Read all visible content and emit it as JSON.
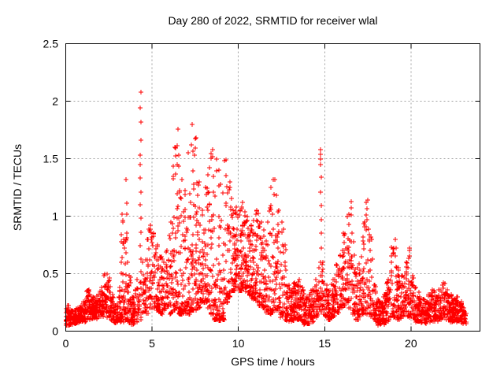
{
  "chart_data": {
    "type": "scatter",
    "title": "Day 280 of 2022, SRMTID for receiver wlal",
    "xlabel": "GPS time / hours",
    "ylabel": "SRMTID / TECUs",
    "marker": "plus",
    "marker_color": "#ff0000",
    "grid": true,
    "grid_color": "#a0a0a0",
    "border_color": "#000000",
    "xlim": [
      0,
      24
    ],
    "ylim": [
      0,
      2.5
    ],
    "x_ticks": [
      0,
      5,
      10,
      15,
      20
    ],
    "y_ticks": [
      0,
      0.5,
      1,
      1.5,
      2,
      2.5
    ],
    "x_data_extent": [
      0.0,
      23.2
    ],
    "bin_width_hours": 0.2,
    "envelope_bins": [
      [
        0.1,
        0.05,
        0.22,
        30
      ],
      [
        0.3,
        0.05,
        0.18,
        30
      ],
      [
        0.5,
        0.06,
        0.18,
        30
      ],
      [
        0.7,
        0.07,
        0.2,
        30
      ],
      [
        0.9,
        0.08,
        0.22,
        30
      ],
      [
        1.1,
        0.08,
        0.26,
        30
      ],
      [
        1.3,
        0.1,
        0.36,
        32
      ],
      [
        1.5,
        0.1,
        0.3,
        30
      ],
      [
        1.7,
        0.1,
        0.27,
        30
      ],
      [
        1.9,
        0.12,
        0.32,
        30
      ],
      [
        2.1,
        0.12,
        0.38,
        30
      ],
      [
        2.3,
        0.15,
        0.5,
        28
      ],
      [
        2.5,
        0.12,
        0.46,
        26
      ],
      [
        2.7,
        0.08,
        0.32,
        28
      ],
      [
        2.9,
        0.06,
        0.22,
        28
      ],
      [
        3.1,
        0.07,
        0.38,
        28
      ],
      [
        3.3,
        0.08,
        1.02,
        34
      ],
      [
        3.5,
        0.1,
        1.32,
        36
      ],
      [
        3.7,
        0.07,
        0.48,
        30
      ],
      [
        3.9,
        0.05,
        0.3,
        30
      ],
      [
        4.1,
        0.08,
        0.45,
        20
      ],
      [
        4.3,
        0.1,
        0.42,
        16
      ],
      [
        4.5,
        0.12,
        0.6,
        18
      ],
      [
        4.7,
        0.15,
        0.8,
        22
      ],
      [
        4.9,
        0.2,
        0.92,
        24
      ],
      [
        5.1,
        0.2,
        0.85,
        26
      ],
      [
        5.3,
        0.18,
        0.75,
        26
      ],
      [
        5.5,
        0.15,
        0.65,
        26
      ],
      [
        5.7,
        0.18,
        0.6,
        24
      ],
      [
        5.9,
        0.2,
        0.7,
        24
      ],
      [
        6.1,
        0.15,
        0.95,
        26
      ],
      [
        6.3,
        0.18,
        1.6,
        34
      ],
      [
        6.5,
        0.15,
        1.76,
        36
      ],
      [
        6.7,
        0.15,
        1.32,
        30
      ],
      [
        6.9,
        0.15,
        1.22,
        28
      ],
      [
        7.1,
        0.15,
        1.55,
        32
      ],
      [
        7.3,
        0.18,
        1.8,
        38
      ],
      [
        7.5,
        0.18,
        1.68,
        34
      ],
      [
        7.7,
        0.2,
        1.3,
        30
      ],
      [
        7.9,
        0.25,
        1.05,
        28
      ],
      [
        8.1,
        0.25,
        1.25,
        26
      ],
      [
        8.3,
        0.2,
        1.42,
        28
      ],
      [
        8.5,
        0.15,
        1.58,
        30
      ],
      [
        8.7,
        0.1,
        1.5,
        30
      ],
      [
        8.9,
        0.09,
        1.4,
        32
      ],
      [
        9.1,
        0.1,
        1.2,
        28
      ],
      [
        9.3,
        0.25,
        1.49,
        30
      ],
      [
        9.5,
        0.3,
        1.3,
        28
      ],
      [
        9.7,
        0.35,
        1.05,
        30
      ],
      [
        9.9,
        0.38,
        1.08,
        32
      ],
      [
        10.1,
        0.35,
        1.05,
        32
      ],
      [
        10.3,
        0.38,
        1.12,
        32
      ],
      [
        10.5,
        0.32,
        1.0,
        30
      ],
      [
        10.7,
        0.3,
        0.92,
        30
      ],
      [
        10.9,
        0.28,
        0.96,
        30
      ],
      [
        11.1,
        0.25,
        1.05,
        30
      ],
      [
        11.3,
        0.22,
        0.95,
        30
      ],
      [
        11.5,
        0.2,
        0.88,
        28
      ],
      [
        11.7,
        0.16,
        0.95,
        26
      ],
      [
        11.9,
        0.15,
        1.25,
        28
      ],
      [
        12.1,
        0.18,
        1.32,
        28
      ],
      [
        12.3,
        0.18,
        1.05,
        26
      ],
      [
        12.5,
        0.12,
        0.95,
        26
      ],
      [
        12.7,
        0.1,
        0.75,
        24
      ],
      [
        12.9,
        0.08,
        0.4,
        28
      ],
      [
        13.1,
        0.08,
        0.35,
        30
      ],
      [
        13.3,
        0.1,
        0.42,
        30
      ],
      [
        13.5,
        0.1,
        0.45,
        30
      ],
      [
        13.7,
        0.08,
        0.38,
        30
      ],
      [
        13.9,
        0.06,
        0.3,
        30
      ],
      [
        14.1,
        0.06,
        0.32,
        30
      ],
      [
        14.3,
        0.08,
        0.36,
        30
      ],
      [
        14.5,
        0.12,
        0.45,
        26
      ],
      [
        14.7,
        0.15,
        0.55,
        18
      ],
      [
        14.9,
        0.15,
        0.6,
        18
      ],
      [
        15.1,
        0.12,
        0.4,
        26
      ],
      [
        15.3,
        0.1,
        0.35,
        28
      ],
      [
        15.5,
        0.12,
        0.45,
        26
      ],
      [
        15.7,
        0.16,
        0.58,
        26
      ],
      [
        15.9,
        0.2,
        0.66,
        26
      ],
      [
        16.1,
        0.22,
        0.85,
        28
      ],
      [
        16.3,
        0.25,
        1.0,
        28
      ],
      [
        16.5,
        0.2,
        1.13,
        28
      ],
      [
        16.7,
        0.15,
        0.78,
        26
      ],
      [
        16.9,
        0.1,
        0.55,
        26
      ],
      [
        17.1,
        0.12,
        0.65,
        26
      ],
      [
        17.3,
        0.15,
        0.95,
        28
      ],
      [
        17.5,
        0.15,
        1.14,
        28
      ],
      [
        17.7,
        0.1,
        0.82,
        24
      ],
      [
        17.9,
        0.08,
        0.4,
        26
      ],
      [
        18.1,
        0.05,
        0.28,
        30
      ],
      [
        18.3,
        0.05,
        0.25,
        30
      ],
      [
        18.5,
        0.06,
        0.32,
        30
      ],
      [
        18.7,
        0.08,
        0.45,
        28
      ],
      [
        18.9,
        0.12,
        0.73,
        26
      ],
      [
        19.1,
        0.12,
        0.8,
        26
      ],
      [
        19.3,
        0.1,
        0.55,
        26
      ],
      [
        19.5,
        0.12,
        0.48,
        26
      ],
      [
        19.7,
        0.15,
        0.6,
        26
      ],
      [
        19.9,
        0.12,
        0.72,
        26
      ],
      [
        20.1,
        0.1,
        0.48,
        26
      ],
      [
        20.3,
        0.08,
        0.38,
        26
      ],
      [
        20.5,
        0.08,
        0.34,
        28
      ],
      [
        20.7,
        0.07,
        0.28,
        28
      ],
      [
        20.9,
        0.06,
        0.26,
        28
      ],
      [
        21.1,
        0.08,
        0.32,
        28
      ],
      [
        21.3,
        0.08,
        0.36,
        28
      ],
      [
        21.5,
        0.08,
        0.3,
        28
      ],
      [
        21.7,
        0.1,
        0.36,
        26
      ],
      [
        21.9,
        0.12,
        0.42,
        26
      ],
      [
        22.1,
        0.1,
        0.36,
        26
      ],
      [
        22.3,
        0.08,
        0.32,
        28
      ],
      [
        22.5,
        0.08,
        0.28,
        28
      ],
      [
        22.7,
        0.08,
        0.3,
        28
      ],
      [
        22.9,
        0.07,
        0.26,
        28
      ],
      [
        23.1,
        0.05,
        0.2,
        22
      ]
    ],
    "spike_columns": [
      {
        "x": 4.32,
        "values": [
          2.08,
          1.94,
          1.82,
          1.66,
          1.53,
          1.45,
          1.33,
          1.21,
          1.1,
          0.98,
          0.86,
          0.74,
          0.63,
          0.52,
          0.43
        ]
      },
      {
        "x": 14.78,
        "values": [
          1.58,
          1.54,
          1.5,
          1.45,
          1.34,
          1.21,
          1.09,
          0.97,
          0.85,
          0.72,
          0.6,
          0.48,
          0.37
        ]
      }
    ]
  }
}
